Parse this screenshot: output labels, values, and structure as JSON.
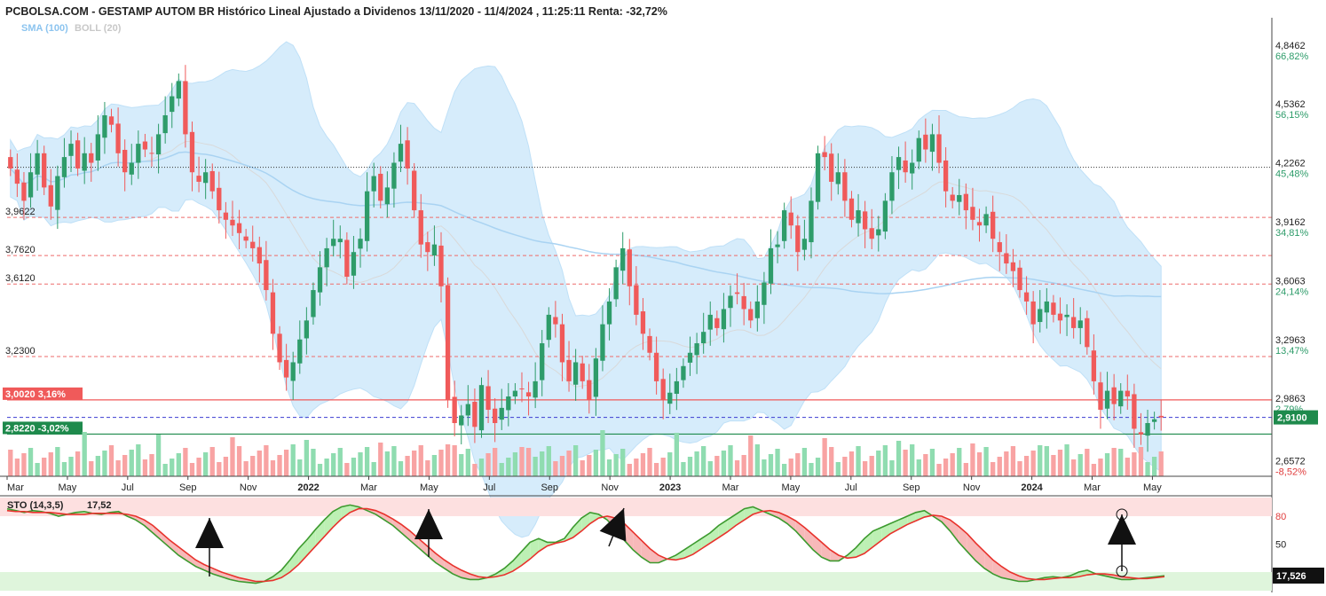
{
  "header": {
    "title": "PCBOLSA.COM - GESTAMP AUTOM BR Histórico Lineal Ajustado a Dividenos 13/11/2020 - 11/4/2024 , 11:25:11 Renta: -32,72%",
    "indicators": [
      "SMA (100)",
      "BOLL (20)"
    ]
  },
  "colors": {
    "up": "#2e9c6a",
    "down": "#f05a5a",
    "band": "#d6ecfb",
    "sma": "#a9d3f2",
    "stoch_k": "#3c9a2e",
    "stoch_d": "#e8322c",
    "last_price_bg": "#1e8a4c"
  },
  "chart_data": [
    {
      "type": "candlestick",
      "ylim": [
        2.6,
        4.92
      ],
      "x_ticks": [
        "Mar",
        "May",
        "Jul",
        "Sep",
        "Nov",
        "2022",
        "Mar",
        "May",
        "Jul",
        "Sep",
        "Nov",
        "2023",
        "Mar",
        "May",
        "Jul",
        "Sep",
        "Nov",
        "2024",
        "Mar",
        "May"
      ],
      "right_axis": [
        {
          "price": "4,8462",
          "pct": "66,82%"
        },
        {
          "price": "4,5362",
          "pct": "56,15%"
        },
        {
          "price": "4,2262",
          "pct": "45,48%"
        },
        {
          "price": "3,9162",
          "pct": "34,81%"
        },
        {
          "price": "3,6063",
          "pct": "24,14%"
        },
        {
          "price": "3,2963",
          "pct": "13,47%"
        },
        {
          "price": "2,9863",
          "pct": "2,79%"
        },
        {
          "price": "2,6572",
          "pct": "-8,52%"
        }
      ],
      "left_levels": [
        "3,9622",
        "3,7620",
        "3,6120",
        "3,2300"
      ],
      "level_values": [
        4.2262,
        3.9622,
        3.762,
        3.612,
        3.23
      ],
      "highlight_lines": [
        {
          "label": "3,0020",
          "pct": "3,16%",
          "value": 3.002,
          "color": "#f05a5a"
        },
        {
          "label": "2,8220",
          "pct": "-3,02%",
          "value": 2.822,
          "color": "#1e8a4c"
        }
      ],
      "last_price": {
        "label": "2,9100",
        "value": 2.91
      },
      "closes": [
        4.22,
        4.14,
        4.05,
        4.2,
        4.3,
        4.12,
        4.02,
        4.18,
        4.28,
        4.35,
        4.22,
        4.3,
        4.25,
        4.4,
        4.5,
        4.45,
        4.3,
        4.2,
        4.25,
        4.35,
        4.32,
        4.3,
        4.4,
        4.5,
        4.6,
        4.68,
        4.4,
        4.2,
        4.15,
        4.2,
        4.1,
        4.0,
        3.95,
        3.92,
        3.88,
        3.84,
        3.8,
        3.72,
        3.58,
        3.35,
        3.2,
        3.12,
        3.2,
        3.32,
        3.42,
        3.58,
        3.7,
        3.8,
        3.85,
        3.85,
        3.65,
        3.78,
        3.85,
        4.1,
        4.18,
        4.05,
        4.12,
        4.25,
        4.35,
        4.22,
        4.0,
        3.82,
        3.78,
        3.82,
        3.6,
        3.0,
        2.88,
        2.92,
        2.98,
        2.86,
        3.08,
        2.95,
        2.88,
        2.96,
        3.02,
        3.05,
        3.06,
        3.02,
        3.1,
        3.3,
        3.45,
        3.4,
        3.2,
        3.1,
        3.2,
        3.1,
        3.0,
        3.22,
        3.4,
        3.52,
        3.7,
        3.8,
        3.6,
        3.45,
        3.35,
        3.25,
        3.1,
        3.0,
        3.04,
        3.1,
        3.18,
        3.25,
        3.3,
        3.36,
        3.45,
        3.38,
        3.48,
        3.55,
        3.56,
        3.48,
        3.42,
        3.52,
        3.62,
        3.8,
        3.82,
        4.0,
        3.92,
        3.78,
        3.85,
        4.05,
        4.3,
        4.28,
        4.15,
        4.2,
        4.05,
        3.95,
        4.0,
        3.9,
        3.85,
        3.9,
        4.05,
        4.2,
        4.28,
        4.2,
        4.25,
        4.38,
        4.32,
        4.4,
        4.25,
        4.1,
        4.05,
        4.08,
        4.0,
        3.95,
        3.92,
        3.98,
        3.85,
        3.78,
        3.72,
        3.68,
        3.58,
        3.52,
        3.4,
        3.48,
        3.52,
        3.45,
        3.42,
        3.45,
        3.38,
        3.42,
        3.28,
        3.1,
        2.95,
        3.05,
        2.98,
        3.05,
        3.02,
        2.85,
        2.82,
        2.88,
        2.9,
        2.91
      ]
    },
    {
      "type": "line",
      "title": "STO (14,3,5)",
      "value": "17,52",
      "last_value": "17,526",
      "ylim": [
        0,
        100
      ],
      "y_ticks": [
        "80",
        "50"
      ],
      "k": [
        88,
        86,
        84,
        86,
        85,
        83,
        80,
        82,
        84,
        85,
        83,
        82,
        84,
        85,
        80,
        76,
        70,
        62,
        54,
        46,
        38,
        32,
        26,
        22,
        18,
        15,
        12,
        10,
        9,
        8,
        10,
        15,
        22,
        33,
        45,
        55,
        66,
        76,
        85,
        90,
        92,
        90,
        86,
        82,
        76,
        70,
        62,
        54,
        46,
        38,
        30,
        24,
        18,
        14,
        12,
        12,
        14,
        18,
        24,
        32,
        42,
        52,
        56,
        52,
        52,
        56,
        68,
        78,
        84,
        82,
        76,
        66,
        54,
        44,
        36,
        30,
        30,
        34,
        38,
        44,
        50,
        56,
        62,
        70,
        76,
        82,
        88,
        90,
        86,
        82,
        78,
        72,
        64,
        54,
        44,
        36,
        32,
        32,
        38,
        46,
        56,
        64,
        68,
        72,
        76,
        80,
        84,
        86,
        80,
        74,
        64,
        52,
        42,
        32,
        24,
        18,
        14,
        12,
        10,
        10,
        12,
        14,
        15,
        14,
        16,
        20,
        22,
        18,
        16,
        14,
        12,
        12,
        13,
        14,
        15,
        16
      ],
      "d": [
        86,
        85,
        85,
        84,
        84,
        84,
        83,
        82,
        82,
        82,
        83,
        83,
        83,
        83,
        82,
        80,
        76,
        70,
        62,
        54,
        47,
        40,
        33,
        28,
        24,
        20,
        17,
        14,
        12,
        10,
        10,
        11,
        14,
        20,
        28,
        38,
        48,
        58,
        68,
        77,
        84,
        88,
        88,
        86,
        82,
        77,
        71,
        64,
        56,
        48,
        40,
        33,
        27,
        22,
        18,
        15,
        14,
        15,
        17,
        21,
        27,
        34,
        42,
        48,
        51,
        53,
        57,
        64,
        72,
        78,
        80,
        78,
        72,
        63,
        54,
        45,
        38,
        34,
        33,
        35,
        39,
        45,
        51,
        57,
        63,
        70,
        76,
        82,
        85,
        86,
        84,
        80,
        75,
        68,
        60,
        52,
        44,
        38,
        35,
        36,
        40,
        47,
        54,
        61,
        66,
        71,
        75,
        79,
        81,
        80,
        76,
        69,
        61,
        51,
        42,
        33,
        26,
        20,
        16,
        13,
        12,
        12,
        13,
        14,
        14,
        15,
        17,
        18,
        18,
        17,
        15,
        14,
        13,
        13,
        14,
        15
      ]
    }
  ]
}
